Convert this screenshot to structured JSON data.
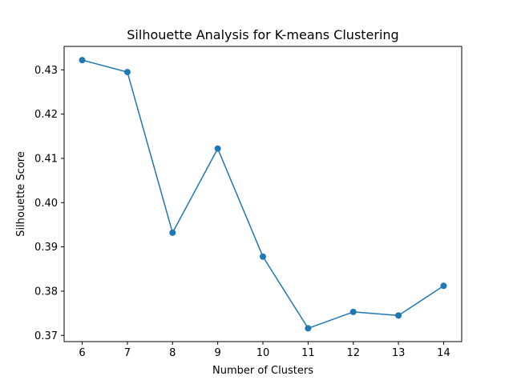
{
  "chart_data": {
    "type": "line",
    "title": "Silhouette Analysis for K-means Clustering",
    "xlabel": "Number of Clusters",
    "ylabel": "Silhouette Score",
    "x": [
      6,
      7,
      8,
      9,
      10,
      11,
      12,
      13,
      14
    ],
    "series": [
      {
        "values": [
          0.4322,
          0.4295,
          0.3932,
          0.4122,
          0.3878,
          0.3716,
          0.3753,
          0.3745,
          0.3812
        ],
        "color": "#1f77b4",
        "marker": "circle"
      }
    ],
    "xticks": [
      "6",
      "7",
      "8",
      "9",
      "10",
      "11",
      "12",
      "13",
      "14"
    ],
    "yticks": [
      0.37,
      0.38,
      0.39,
      0.4,
      0.41,
      0.42,
      0.43
    ],
    "ytick_labels": [
      "0.37",
      "0.38",
      "0.39",
      "0.40",
      "0.41",
      "0.42",
      "0.43"
    ],
    "xlim": [
      5.6,
      14.4
    ],
    "ylim": [
      0.3686,
      0.4353
    ],
    "grid": false,
    "legend": "none"
  }
}
